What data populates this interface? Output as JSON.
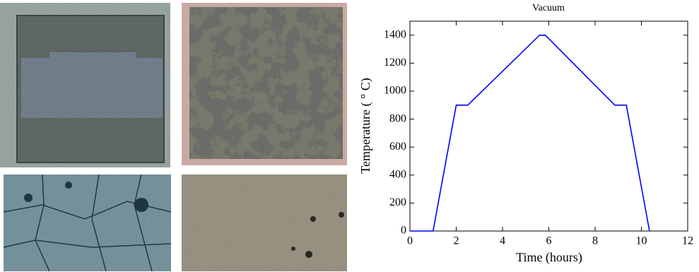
{
  "chart_data": {
    "type": "line",
    "title": "Vacuum",
    "x_label": "Time (hours)",
    "y_label": "Temperature ( ° C)",
    "x": [
      0,
      1,
      2,
      2.5,
      5.6,
      5.85,
      8.85,
      9.35,
      10.35
    ],
    "series": [
      {
        "name": "Vacuum",
        "color": "#0000ff",
        "values": [
          0,
          0,
          900,
          900,
          1400,
          1400,
          900,
          900,
          0
        ]
      }
    ],
    "xlim": [
      0,
      12
    ],
    "xticks": [
      0,
      2,
      4,
      6,
      8,
      10,
      12
    ],
    "ylim": [
      0,
      1500
    ],
    "yticks": [
      0,
      200,
      400,
      600,
      800,
      1000,
      1200,
      1400
    ],
    "grid": false
  }
}
